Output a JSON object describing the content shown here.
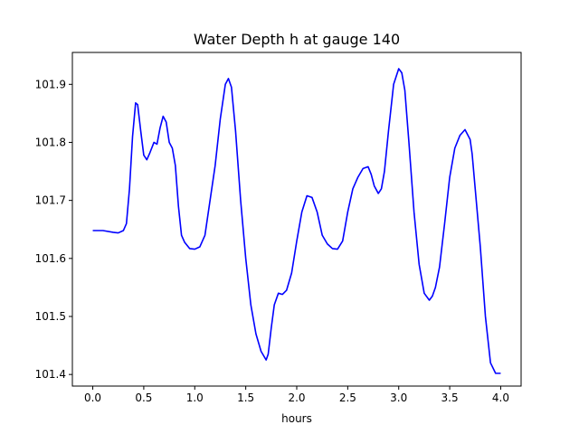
{
  "chart_data": {
    "type": "line",
    "title": "Water Depth h at gauge 140",
    "xlabel": "hours",
    "ylabel": "",
    "xlim": [
      -0.2,
      4.2
    ],
    "ylim": [
      101.38,
      101.955
    ],
    "x_ticks": [
      0.0,
      0.5,
      1.0,
      1.5,
      2.0,
      2.5,
      3.0,
      3.5,
      4.0
    ],
    "x_tick_labels": [
      "0.0",
      "0.5",
      "1.0",
      "1.5",
      "2.0",
      "2.5",
      "3.0",
      "3.5",
      "4.0"
    ],
    "y_ticks": [
      101.4,
      101.5,
      101.6,
      101.7,
      101.8,
      101.9
    ],
    "y_tick_labels": [
      "101.4",
      "101.5",
      "101.6",
      "101.7",
      "101.8",
      "101.9"
    ],
    "grid": false,
    "series": [
      {
        "color": "#0000ff",
        "x": [
          0.0,
          0.1,
          0.2,
          0.25,
          0.3,
          0.33,
          0.36,
          0.39,
          0.42,
          0.44,
          0.47,
          0.5,
          0.53,
          0.56,
          0.6,
          0.63,
          0.66,
          0.69,
          0.72,
          0.75,
          0.78,
          0.81,
          0.84,
          0.87,
          0.9,
          0.95,
          1.0,
          1.05,
          1.1,
          1.15,
          1.2,
          1.25,
          1.3,
          1.33,
          1.36,
          1.4,
          1.45,
          1.5,
          1.55,
          1.6,
          1.65,
          1.7,
          1.72,
          1.75,
          1.78,
          1.82,
          1.86,
          1.9,
          1.95,
          2.0,
          2.05,
          2.1,
          2.15,
          2.2,
          2.25,
          2.3,
          2.35,
          2.4,
          2.45,
          2.5,
          2.55,
          2.6,
          2.65,
          2.7,
          2.73,
          2.76,
          2.8,
          2.83,
          2.86,
          2.9,
          2.95,
          3.0,
          3.03,
          3.06,
          3.1,
          3.15,
          3.2,
          3.25,
          3.3,
          3.33,
          3.36,
          3.4,
          3.45,
          3.5,
          3.55,
          3.6,
          3.65,
          3.7,
          3.72,
          3.75,
          3.8,
          3.85,
          3.9,
          3.95,
          4.0
        ],
        "y": [
          101.648,
          101.648,
          101.645,
          101.644,
          101.648,
          101.66,
          101.72,
          101.81,
          101.868,
          101.865,
          101.82,
          101.778,
          101.77,
          101.782,
          101.8,
          101.797,
          101.825,
          101.845,
          101.835,
          101.8,
          101.79,
          101.76,
          101.69,
          101.64,
          101.628,
          101.617,
          101.616,
          101.62,
          101.64,
          101.7,
          101.76,
          101.84,
          101.9,
          101.91,
          101.895,
          101.82,
          101.7,
          101.6,
          101.52,
          101.47,
          101.44,
          101.425,
          101.435,
          101.48,
          101.52,
          101.54,
          101.538,
          101.545,
          101.575,
          101.63,
          101.68,
          101.708,
          101.705,
          101.68,
          101.64,
          101.625,
          101.617,
          101.616,
          101.63,
          101.68,
          101.72,
          101.74,
          101.755,
          101.758,
          101.745,
          101.725,
          101.712,
          101.72,
          101.75,
          101.82,
          101.9,
          101.927,
          101.92,
          101.89,
          101.8,
          101.68,
          101.59,
          101.54,
          101.528,
          101.535,
          101.55,
          101.585,
          101.66,
          101.74,
          101.79,
          101.812,
          101.822,
          101.805,
          101.78,
          101.72,
          101.62,
          101.5,
          101.42,
          101.402,
          101.402
        ]
      }
    ]
  }
}
